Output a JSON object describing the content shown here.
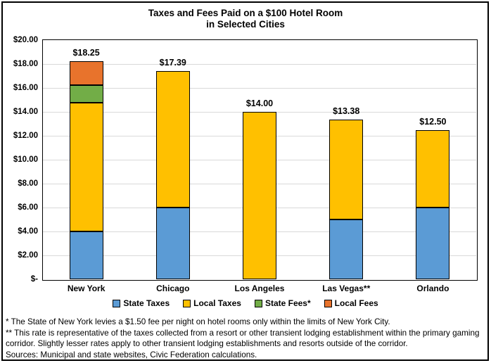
{
  "title": {
    "line1": "Taxes and Fees Paid on a $100 Hotel Room",
    "line2": "in Selected Cities"
  },
  "chart_data": {
    "type": "bar",
    "stacked": true,
    "title": "Taxes and Fees Paid on a $100 Hotel Room in Selected Cities",
    "categories": [
      "New York",
      "Chicago",
      "Los Angeles",
      "Las Vegas**",
      "Orlando"
    ],
    "series": [
      {
        "name": "State Taxes",
        "color": "#5B9BD5",
        "values": [
          4.0,
          6.0,
          0,
          5.0,
          6.0
        ]
      },
      {
        "name": "Local Taxes",
        "color": "#FFC000",
        "values": [
          10.75,
          11.39,
          14.0,
          8.38,
          6.5
        ]
      },
      {
        "name": "State Fees*",
        "color": "#72AD47",
        "values": [
          1.5,
          0,
          0,
          0,
          0
        ]
      },
      {
        "name": "Local Fees",
        "color": "#E8732C",
        "values": [
          2.0,
          0,
          0,
          0,
          0
        ]
      }
    ],
    "totals": [
      18.25,
      17.39,
      14.0,
      13.38,
      12.5
    ],
    "total_labels": [
      "$18.25",
      "$17.39",
      "$14.00",
      "$13.38",
      "$12.50"
    ],
    "y_axis": {
      "min": 0,
      "max": 20,
      "step": 2,
      "tick_labels": [
        "$20.00",
        "$18.00",
        "$16.00",
        "$14.00",
        "$12.00",
        "$10.00",
        "$8.00",
        "$6.00",
        "$4.00",
        "$2.00",
        "$-"
      ]
    },
    "grid": true,
    "gridline_color": "#D9D9D9",
    "legend_position": "bottom"
  },
  "footnotes": [
    "* The State of New York levies a $1.50 fee per night on hotel rooms only within the limits of New York City.",
    "** This rate is representative of the taxes collected from a resort or other transient lodging establishment within the primary gaming corridor. Slightly lesser rates apply to other transient lodging establishments and resorts outside of the corridor.",
    "Sources: Municipal and state websites, Civic Federation calculations."
  ]
}
